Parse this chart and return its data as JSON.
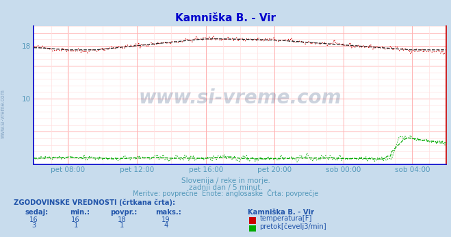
{
  "title": "Kamniška B. - Vir",
  "bg_color": "#c8dced",
  "plot_bg_color": "#ffffff",
  "grid_color_major": "#ffb0b0",
  "grid_color_minor": "#ffe0e0",
  "x_tick_labels": [
    "pet 08:00",
    "pet 12:00",
    "pet 16:00",
    "pet 20:00",
    "sob 00:00",
    "sob 04:00"
  ],
  "x_tick_positions": [
    0.083,
    0.25,
    0.417,
    0.583,
    0.75,
    0.917
  ],
  "ylim_low": 0,
  "ylim_high": 21,
  "ytick_vals": [
    10,
    18
  ],
  "ytick_labels": [
    "10",
    "18"
  ],
  "subtitle1": "Slovenija / reke in morje.",
  "subtitle2": "zadnji dan / 5 minut.",
  "subtitle3": "Meritve: povprečne  Enote: anglosaške  Črta: povprečje",
  "watermark": "www.si-vreme.com",
  "legend_title": "Kamniška B. - Vir",
  "table_header": "ZGODOVINSKE VREDNOSTI (črtkana črta):",
  "col_headers": [
    "sedaj:",
    "min.:",
    "povpr.:",
    "maks.:"
  ],
  "row1": [
    "16",
    "16",
    "18",
    "19"
  ],
  "row2": [
    "3",
    "1",
    "1",
    "4"
  ],
  "legend1": "temperatura[F]",
  "legend2": "pretok[čevelj3/min]",
  "temp_color": "#cc0000",
  "flow_color": "#00aa00",
  "axis_line_color": "#0000cc",
  "title_color": "#0000cc",
  "subtitle_color": "#5599bb",
  "label_color": "#5599bb",
  "table_color": "#2255aa",
  "n_points": 288
}
